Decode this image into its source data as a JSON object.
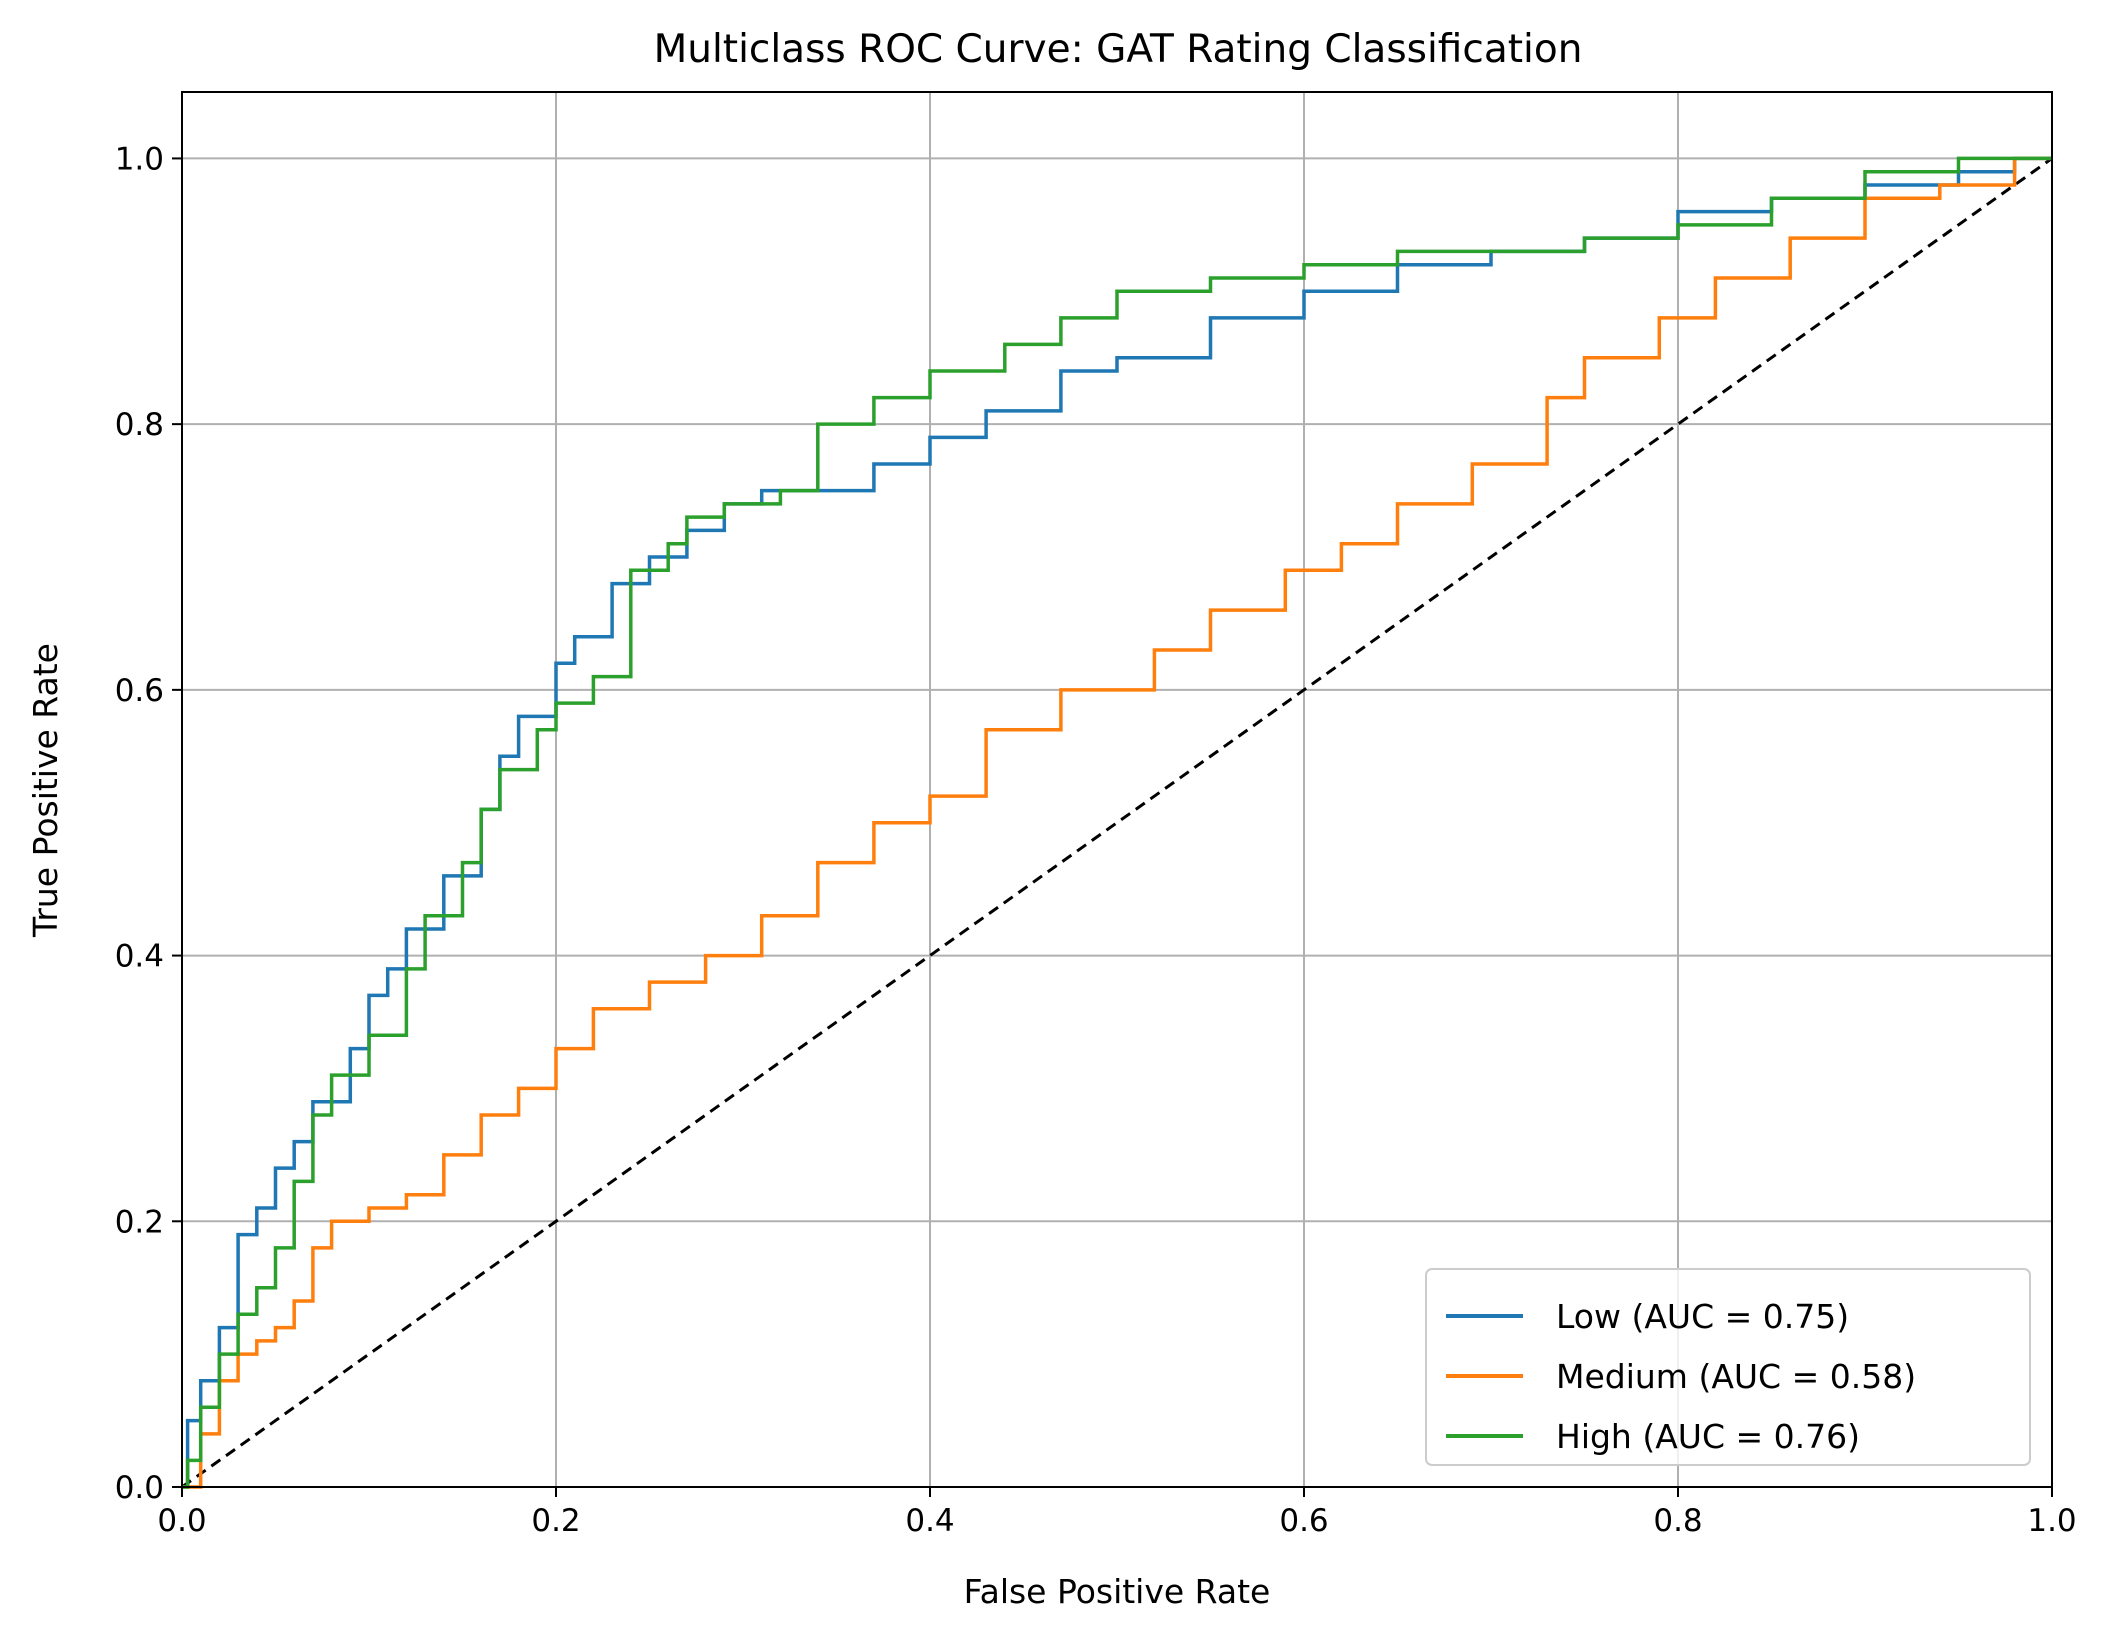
{
  "chart_data": {
    "type": "line",
    "title": "Multiclass ROC Curve: GAT Rating Classification",
    "xlabel": "False Positive Rate",
    "ylabel": "True Positive Rate",
    "xlim": [
      0.0,
      1.0
    ],
    "ylim": [
      0.0,
      1.05
    ],
    "xticks": [
      "0.0",
      "0.2",
      "0.4",
      "0.6",
      "0.8",
      "1.0"
    ],
    "yticks": [
      "0.0",
      "0.2",
      "0.4",
      "0.6",
      "0.8",
      "1.0"
    ],
    "grid": true,
    "legend_position": "lower-right",
    "series": [
      {
        "name": "Low (AUC = 0.75)",
        "color": "#1f77b4",
        "x": [
          0.0,
          0.003,
          0.003,
          0.01,
          0.01,
          0.02,
          0.02,
          0.03,
          0.03,
          0.04,
          0.04,
          0.05,
          0.05,
          0.06,
          0.06,
          0.07,
          0.07,
          0.09,
          0.09,
          0.1,
          0.1,
          0.11,
          0.11,
          0.12,
          0.12,
          0.14,
          0.14,
          0.16,
          0.16,
          0.17,
          0.17,
          0.18,
          0.18,
          0.2,
          0.2,
          0.21,
          0.21,
          0.23,
          0.23,
          0.25,
          0.25,
          0.27,
          0.27,
          0.29,
          0.29,
          0.31,
          0.31,
          0.33,
          0.33,
          0.37,
          0.37,
          0.4,
          0.4,
          0.43,
          0.43,
          0.47,
          0.47,
          0.5,
          0.5,
          0.55,
          0.55,
          0.6,
          0.6,
          0.65,
          0.65,
          0.7,
          0.7,
          0.75,
          0.75,
          0.8,
          0.8,
          0.85,
          0.85,
          0.9,
          0.9,
          0.95,
          0.95,
          0.98,
          0.98,
          1.0
        ],
        "y": [
          0.0,
          0.0,
          0.05,
          0.05,
          0.08,
          0.08,
          0.12,
          0.12,
          0.19,
          0.19,
          0.21,
          0.21,
          0.24,
          0.24,
          0.26,
          0.26,
          0.29,
          0.29,
          0.33,
          0.33,
          0.37,
          0.37,
          0.39,
          0.39,
          0.42,
          0.42,
          0.46,
          0.46,
          0.51,
          0.51,
          0.55,
          0.55,
          0.58,
          0.58,
          0.62,
          0.62,
          0.64,
          0.64,
          0.68,
          0.68,
          0.7,
          0.7,
          0.72,
          0.72,
          0.74,
          0.74,
          0.75,
          0.75,
          0.75,
          0.75,
          0.77,
          0.77,
          0.79,
          0.79,
          0.81,
          0.81,
          0.84,
          0.84,
          0.85,
          0.85,
          0.88,
          0.88,
          0.9,
          0.9,
          0.92,
          0.92,
          0.93,
          0.93,
          0.94,
          0.94,
          0.96,
          0.96,
          0.97,
          0.97,
          0.98,
          0.98,
          0.99,
          0.99,
          1.0,
          1.0
        ]
      },
      {
        "name": "Medium (AUC = 0.58)",
        "color": "#ff7f0e",
        "x": [
          0.0,
          0.01,
          0.01,
          0.02,
          0.02,
          0.03,
          0.03,
          0.04,
          0.04,
          0.05,
          0.05,
          0.06,
          0.06,
          0.07,
          0.07,
          0.08,
          0.08,
          0.1,
          0.1,
          0.12,
          0.12,
          0.14,
          0.14,
          0.16,
          0.16,
          0.18,
          0.18,
          0.2,
          0.2,
          0.22,
          0.22,
          0.25,
          0.25,
          0.28,
          0.28,
          0.31,
          0.31,
          0.34,
          0.34,
          0.37,
          0.37,
          0.4,
          0.4,
          0.43,
          0.43,
          0.47,
          0.47,
          0.52,
          0.52,
          0.55,
          0.55,
          0.59,
          0.59,
          0.62,
          0.62,
          0.65,
          0.65,
          0.69,
          0.69,
          0.73,
          0.73,
          0.75,
          0.75,
          0.79,
          0.79,
          0.82,
          0.82,
          0.86,
          0.86,
          0.9,
          0.9,
          0.94,
          0.94,
          0.98,
          0.98,
          1.0
        ],
        "y": [
          0.0,
          0.0,
          0.04,
          0.04,
          0.08,
          0.08,
          0.1,
          0.1,
          0.11,
          0.11,
          0.12,
          0.12,
          0.14,
          0.14,
          0.18,
          0.18,
          0.2,
          0.2,
          0.21,
          0.21,
          0.22,
          0.22,
          0.25,
          0.25,
          0.28,
          0.28,
          0.3,
          0.3,
          0.33,
          0.33,
          0.36,
          0.36,
          0.38,
          0.38,
          0.4,
          0.4,
          0.43,
          0.43,
          0.47,
          0.47,
          0.5,
          0.5,
          0.52,
          0.52,
          0.57,
          0.57,
          0.6,
          0.6,
          0.63,
          0.63,
          0.66,
          0.66,
          0.69,
          0.69,
          0.71,
          0.71,
          0.74,
          0.74,
          0.77,
          0.77,
          0.82,
          0.82,
          0.85,
          0.85,
          0.88,
          0.88,
          0.91,
          0.91,
          0.94,
          0.94,
          0.97,
          0.97,
          0.98,
          0.98,
          1.0,
          1.0
        ]
      },
      {
        "name": "High (AUC = 0.76)",
        "color": "#2ca02c",
        "x": [
          0.0,
          0.003,
          0.003,
          0.01,
          0.01,
          0.02,
          0.02,
          0.03,
          0.03,
          0.04,
          0.04,
          0.05,
          0.05,
          0.06,
          0.06,
          0.07,
          0.07,
          0.08,
          0.08,
          0.1,
          0.1,
          0.12,
          0.12,
          0.13,
          0.13,
          0.15,
          0.15,
          0.16,
          0.16,
          0.17,
          0.17,
          0.19,
          0.19,
          0.2,
          0.2,
          0.22,
          0.22,
          0.24,
          0.24,
          0.26,
          0.26,
          0.27,
          0.27,
          0.29,
          0.29,
          0.32,
          0.32,
          0.34,
          0.34,
          0.37,
          0.37,
          0.4,
          0.4,
          0.44,
          0.44,
          0.47,
          0.47,
          0.5,
          0.5,
          0.55,
          0.55,
          0.6,
          0.6,
          0.65,
          0.65,
          0.7,
          0.7,
          0.75,
          0.75,
          0.8,
          0.8,
          0.85,
          0.85,
          0.9,
          0.9,
          0.95,
          0.95,
          1.0
        ],
        "y": [
          0.0,
          0.0,
          0.02,
          0.02,
          0.06,
          0.06,
          0.1,
          0.1,
          0.13,
          0.13,
          0.15,
          0.15,
          0.18,
          0.18,
          0.23,
          0.23,
          0.28,
          0.28,
          0.31,
          0.31,
          0.34,
          0.34,
          0.39,
          0.39,
          0.43,
          0.43,
          0.47,
          0.47,
          0.51,
          0.51,
          0.54,
          0.54,
          0.57,
          0.57,
          0.59,
          0.59,
          0.61,
          0.61,
          0.69,
          0.69,
          0.71,
          0.71,
          0.73,
          0.73,
          0.74,
          0.74,
          0.75,
          0.75,
          0.8,
          0.8,
          0.82,
          0.82,
          0.84,
          0.84,
          0.86,
          0.86,
          0.88,
          0.88,
          0.9,
          0.9,
          0.91,
          0.91,
          0.92,
          0.92,
          0.93,
          0.93,
          0.93,
          0.93,
          0.94,
          0.94,
          0.95,
          0.95,
          0.97,
          0.97,
          0.99,
          0.99,
          1.0,
          1.0
        ]
      },
      {
        "name": "",
        "color": "#000000",
        "dashed": true,
        "x": [
          0.0,
          1.0
        ],
        "y": [
          0.0,
          1.0
        ]
      }
    ]
  }
}
